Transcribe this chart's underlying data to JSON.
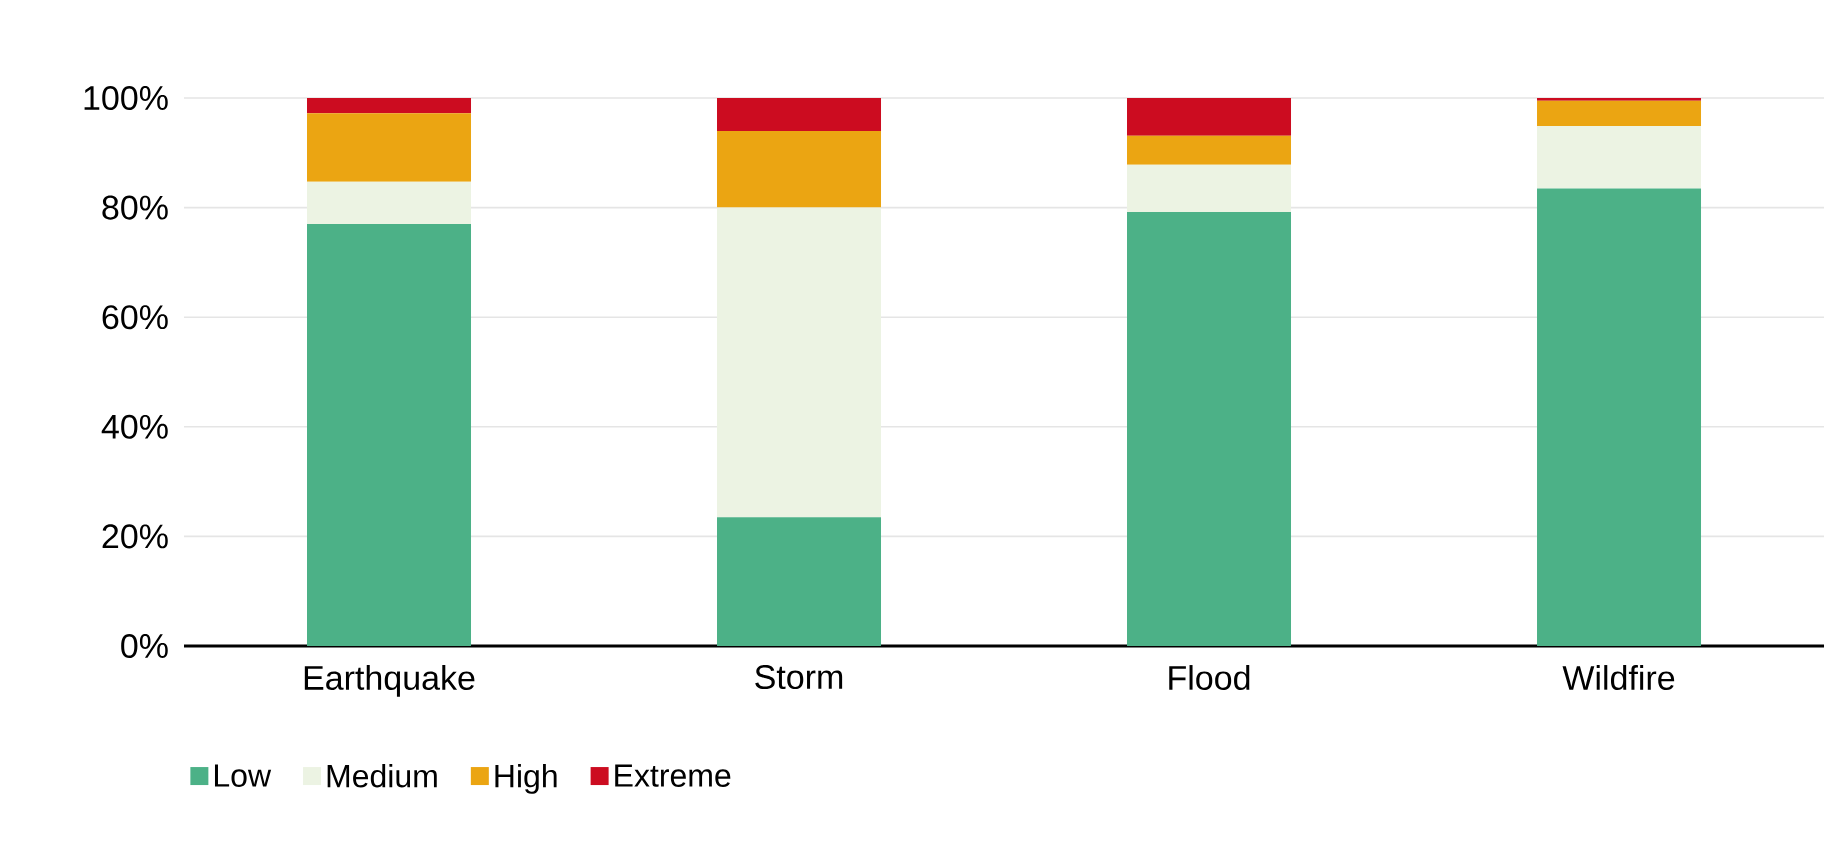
{
  "chart_data": {
    "type": "bar",
    "stacked": true,
    "categories": [
      "Earthquake",
      "Storm",
      "Flood",
      "Wildfire"
    ],
    "series": [
      {
        "name": "Low",
        "color": "#4cb187",
        "values": [
          77,
          23.5,
          79.2,
          83.5
        ]
      },
      {
        "name": "Medium",
        "color": "#ecf3e3",
        "values": [
          7.7,
          56.5,
          8.6,
          11.4
        ]
      },
      {
        "name": "High",
        "color": "#eba512",
        "values": [
          12.5,
          14,
          5.3,
          4.6
        ]
      },
      {
        "name": "Extreme",
        "color": "#cc0c20",
        "values": [
          2.8,
          6,
          6.9,
          0.5
        ]
      }
    ],
    "ylim": [
      0,
      100
    ],
    "yticks": [
      {
        "value": 0,
        "label": "0%"
      },
      {
        "value": 20,
        "label": "20%"
      },
      {
        "value": 40,
        "label": "40%"
      },
      {
        "value": 60,
        "label": "60%"
      },
      {
        "value": 80,
        "label": "80%"
      },
      {
        "value": 100,
        "label": "100%"
      }
    ],
    "grid": "y",
    "legend": "bottom left"
  }
}
